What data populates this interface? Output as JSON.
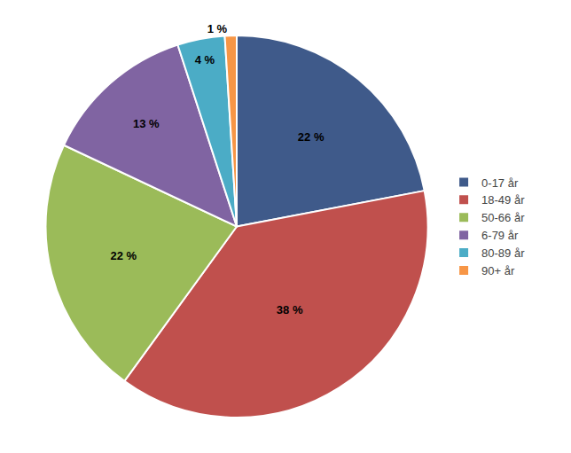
{
  "chart_data": {
    "type": "pie",
    "categories": [
      "0-17 år",
      "18-49 år",
      "50-66 år",
      "6-79 år",
      "80-89 år",
      "90+ år"
    ],
    "values": [
      22,
      38,
      22,
      13,
      4,
      1
    ],
    "value_labels": [
      "22 %",
      "38 %",
      "22 %",
      "13 %",
      "4 %",
      "1 %"
    ],
    "colors": [
      "#3F5A8A",
      "#C0504D",
      "#9BBB59",
      "#8064A2",
      "#4BACC6",
      "#F79646"
    ],
    "data_labels": true,
    "legend": "right"
  }
}
